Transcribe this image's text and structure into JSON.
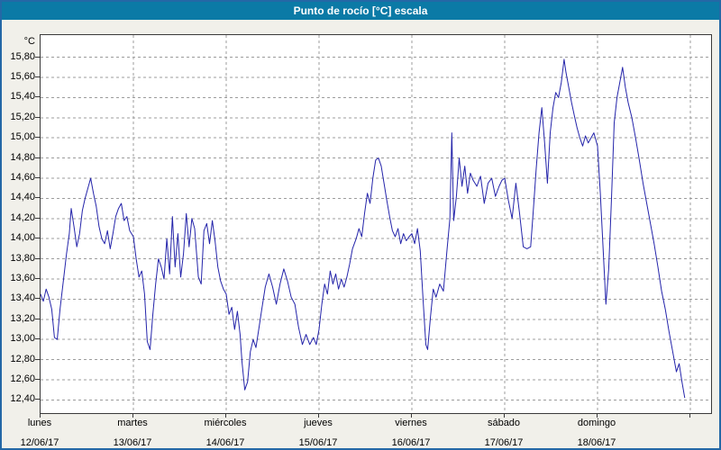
{
  "window": {
    "title": "Punto de rocío [°C] escala"
  },
  "colors": {
    "titlebar": "#0b7aa6",
    "window_border": "#2468a6",
    "background": "#f1f0ea",
    "plot_background": "#ffffff",
    "plot_border": "#3a3a3a",
    "grid": "#9c9c9c",
    "line": "#2424aa",
    "text": "#000000"
  },
  "chart_data": {
    "type": "line",
    "title": "Punto de rocío [°C] escala",
    "ylabel": "°C",
    "grid": "dashed",
    "legend": "none",
    "ylim": [
      12.27,
      16.02
    ],
    "yticks": [
      15.8,
      15.6,
      15.4,
      15.2,
      15.0,
      14.8,
      14.6,
      14.4,
      14.2,
      14.0,
      13.8,
      13.6,
      13.4,
      13.2,
      13.0,
      12.8,
      12.6,
      12.4
    ],
    "ytick_labels": [
      "15,80",
      "15,60",
      "15,40",
      "15,20",
      "15,00",
      "14,80",
      "14,60",
      "14,40",
      "14,20",
      "14,00",
      "13,80",
      "13,60",
      "13,40",
      "13,20",
      "13,00",
      "12,80",
      "12,60",
      "12,40"
    ],
    "x_range_days": [
      0,
      7.22
    ],
    "x_labels": [
      {
        "day": "lunes",
        "date": "12/06/17"
      },
      {
        "day": "martes",
        "date": "13/06/17"
      },
      {
        "day": "miércoles",
        "date": "14/06/17"
      },
      {
        "day": "jueves",
        "date": "15/06/17"
      },
      {
        "day": "viernes",
        "date": "16/06/17"
      },
      {
        "day": "sábado",
        "date": "17/06/17"
      },
      {
        "day": "domingo",
        "date": "18/06/17"
      }
    ],
    "series": [
      {
        "name": "Punto de rocío",
        "points": [
          [
            0.0,
            13.45
          ],
          [
            0.03,
            13.38
          ],
          [
            0.06,
            13.5
          ],
          [
            0.09,
            13.42
          ],
          [
            0.12,
            13.3
          ],
          [
            0.15,
            13.02
          ],
          [
            0.18,
            13.0
          ],
          [
            0.21,
            13.3
          ],
          [
            0.25,
            13.62
          ],
          [
            0.28,
            13.85
          ],
          [
            0.31,
            14.05
          ],
          [
            0.33,
            14.3
          ],
          [
            0.36,
            14.12
          ],
          [
            0.39,
            13.92
          ],
          [
            0.42,
            14.05
          ],
          [
            0.45,
            14.28
          ],
          [
            0.48,
            14.4
          ],
          [
            0.51,
            14.5
          ],
          [
            0.54,
            14.6
          ],
          [
            0.57,
            14.45
          ],
          [
            0.6,
            14.32
          ],
          [
            0.63,
            14.12
          ],
          [
            0.66,
            14.0
          ],
          [
            0.69,
            13.95
          ],
          [
            0.72,
            14.08
          ],
          [
            0.75,
            13.9
          ],
          [
            0.78,
            14.05
          ],
          [
            0.81,
            14.22
          ],
          [
            0.84,
            14.3
          ],
          [
            0.87,
            14.35
          ],
          [
            0.9,
            14.18
          ],
          [
            0.93,
            14.22
          ],
          [
            0.96,
            14.08
          ],
          [
            1.0,
            14.02
          ],
          [
            1.03,
            13.8
          ],
          [
            1.06,
            13.62
          ],
          [
            1.09,
            13.68
          ],
          [
            1.12,
            13.45
          ],
          [
            1.15,
            12.98
          ],
          [
            1.18,
            12.9
          ],
          [
            1.21,
            13.25
          ],
          [
            1.24,
            13.55
          ],
          [
            1.27,
            13.8
          ],
          [
            1.3,
            13.72
          ],
          [
            1.33,
            13.6
          ],
          [
            1.36,
            14.0
          ],
          [
            1.39,
            13.65
          ],
          [
            1.42,
            14.22
          ],
          [
            1.45,
            13.72
          ],
          [
            1.48,
            14.05
          ],
          [
            1.51,
            13.62
          ],
          [
            1.54,
            13.85
          ],
          [
            1.57,
            14.25
          ],
          [
            1.6,
            13.92
          ],
          [
            1.63,
            14.2
          ],
          [
            1.66,
            14.1
          ],
          [
            1.7,
            13.62
          ],
          [
            1.73,
            13.55
          ],
          [
            1.76,
            14.08
          ],
          [
            1.79,
            14.15
          ],
          [
            1.82,
            13.95
          ],
          [
            1.85,
            14.18
          ],
          [
            1.88,
            13.98
          ],
          [
            1.91,
            13.72
          ],
          [
            1.94,
            13.58
          ],
          [
            1.97,
            13.5
          ],
          [
            2.0,
            13.45
          ],
          [
            2.03,
            13.25
          ],
          [
            2.06,
            13.32
          ],
          [
            2.09,
            13.1
          ],
          [
            2.12,
            13.28
          ],
          [
            2.15,
            13.05
          ],
          [
            2.17,
            12.78
          ],
          [
            2.2,
            12.5
          ],
          [
            2.23,
            12.58
          ],
          [
            2.26,
            12.88
          ],
          [
            2.29,
            13.0
          ],
          [
            2.32,
            12.92
          ],
          [
            2.35,
            13.1
          ],
          [
            2.38,
            13.28
          ],
          [
            2.42,
            13.52
          ],
          [
            2.46,
            13.65
          ],
          [
            2.5,
            13.52
          ],
          [
            2.54,
            13.35
          ],
          [
            2.58,
            13.55
          ],
          [
            2.62,
            13.7
          ],
          [
            2.66,
            13.58
          ],
          [
            2.7,
            13.42
          ],
          [
            2.74,
            13.35
          ],
          [
            2.78,
            13.12
          ],
          [
            2.82,
            12.95
          ],
          [
            2.86,
            13.05
          ],
          [
            2.9,
            12.95
          ],
          [
            2.94,
            13.02
          ],
          [
            2.97,
            12.95
          ],
          [
            3.0,
            13.1
          ],
          [
            3.03,
            13.35
          ],
          [
            3.06,
            13.55
          ],
          [
            3.09,
            13.45
          ],
          [
            3.12,
            13.68
          ],
          [
            3.15,
            13.55
          ],
          [
            3.18,
            13.65
          ],
          [
            3.21,
            13.5
          ],
          [
            3.24,
            13.6
          ],
          [
            3.27,
            13.52
          ],
          [
            3.3,
            13.62
          ],
          [
            3.33,
            13.75
          ],
          [
            3.36,
            13.9
          ],
          [
            3.4,
            14.0
          ],
          [
            3.43,
            14.1
          ],
          [
            3.46,
            14.02
          ],
          [
            3.49,
            14.25
          ],
          [
            3.52,
            14.45
          ],
          [
            3.55,
            14.35
          ],
          [
            3.58,
            14.6
          ],
          [
            3.61,
            14.78
          ],
          [
            3.64,
            14.8
          ],
          [
            3.67,
            14.72
          ],
          [
            3.7,
            14.55
          ],
          [
            3.73,
            14.38
          ],
          [
            3.76,
            14.22
          ],
          [
            3.79,
            14.08
          ],
          [
            3.82,
            14.02
          ],
          [
            3.85,
            14.1
          ],
          [
            3.88,
            13.95
          ],
          [
            3.91,
            14.05
          ],
          [
            3.94,
            13.98
          ],
          [
            3.97,
            14.02
          ],
          [
            4.0,
            14.05
          ],
          [
            4.03,
            13.95
          ],
          [
            4.06,
            14.1
          ],
          [
            4.09,
            13.88
          ],
          [
            4.12,
            13.4
          ],
          [
            4.15,
            12.95
          ],
          [
            4.17,
            12.9
          ],
          [
            4.2,
            13.22
          ],
          [
            4.23,
            13.5
          ],
          [
            4.26,
            13.42
          ],
          [
            4.3,
            13.55
          ],
          [
            4.34,
            13.48
          ],
          [
            4.38,
            13.9
          ],
          [
            4.41,
            14.2
          ],
          [
            4.43,
            15.05
          ],
          [
            4.45,
            14.18
          ],
          [
            4.48,
            14.42
          ],
          [
            4.51,
            14.8
          ],
          [
            4.54,
            14.52
          ],
          [
            4.57,
            14.72
          ],
          [
            4.6,
            14.45
          ],
          [
            4.63,
            14.65
          ],
          [
            4.66,
            14.58
          ],
          [
            4.7,
            14.52
          ],
          [
            4.74,
            14.62
          ],
          [
            4.78,
            14.35
          ],
          [
            4.82,
            14.55
          ],
          [
            4.86,
            14.6
          ],
          [
            4.9,
            14.42
          ],
          [
            4.94,
            14.52
          ],
          [
            4.97,
            14.58
          ],
          [
            5.0,
            14.6
          ],
          [
            5.04,
            14.38
          ],
          [
            5.08,
            14.2
          ],
          [
            5.12,
            14.55
          ],
          [
            5.16,
            14.25
          ],
          [
            5.2,
            13.92
          ],
          [
            5.24,
            13.9
          ],
          [
            5.28,
            13.92
          ],
          [
            5.31,
            14.3
          ],
          [
            5.34,
            14.7
          ],
          [
            5.37,
            15.05
          ],
          [
            5.4,
            15.3
          ],
          [
            5.43,
            14.95
          ],
          [
            5.46,
            14.55
          ],
          [
            5.49,
            15.05
          ],
          [
            5.52,
            15.3
          ],
          [
            5.55,
            15.45
          ],
          [
            5.58,
            15.4
          ],
          [
            5.61,
            15.55
          ],
          [
            5.64,
            15.78
          ],
          [
            5.66,
            15.65
          ],
          [
            5.69,
            15.5
          ],
          [
            5.72,
            15.35
          ],
          [
            5.75,
            15.22
          ],
          [
            5.78,
            15.1
          ],
          [
            5.81,
            15.0
          ],
          [
            5.84,
            14.92
          ],
          [
            5.87,
            15.02
          ],
          [
            5.9,
            14.95
          ],
          [
            5.93,
            15.0
          ],
          [
            5.96,
            15.05
          ],
          [
            6.0,
            14.92
          ],
          [
            6.03,
            14.45
          ],
          [
            6.06,
            13.9
          ],
          [
            6.09,
            13.35
          ],
          [
            6.12,
            13.7
          ],
          [
            6.15,
            14.4
          ],
          [
            6.18,
            15.15
          ],
          [
            6.21,
            15.4
          ],
          [
            6.24,
            15.55
          ],
          [
            6.27,
            15.7
          ],
          [
            6.3,
            15.5
          ],
          [
            6.33,
            15.35
          ],
          [
            6.37,
            15.2
          ],
          [
            6.41,
            15.0
          ],
          [
            6.45,
            14.78
          ],
          [
            6.49,
            14.55
          ],
          [
            6.53,
            14.35
          ],
          [
            6.57,
            14.15
          ],
          [
            6.61,
            13.95
          ],
          [
            6.65,
            13.72
          ],
          [
            6.69,
            13.48
          ],
          [
            6.73,
            13.3
          ],
          [
            6.77,
            13.08
          ],
          [
            6.81,
            12.88
          ],
          [
            6.85,
            12.68
          ],
          [
            6.88,
            12.76
          ],
          [
            6.91,
            12.58
          ],
          [
            6.94,
            12.42
          ]
        ]
      }
    ]
  }
}
